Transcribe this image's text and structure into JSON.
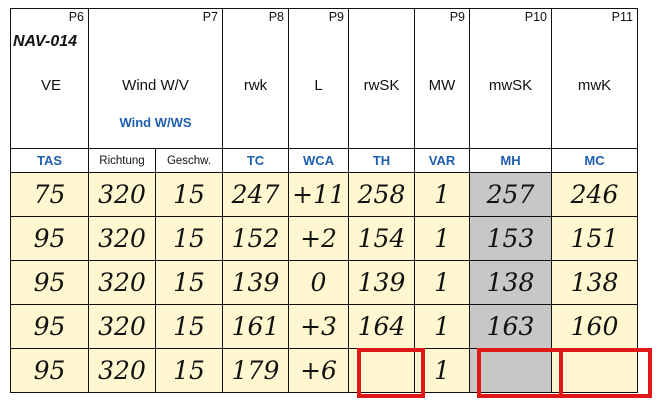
{
  "table": {
    "nav_id": "NAV-014",
    "columns": [
      {
        "p": "P6",
        "name": "VE",
        "sub": "TAS"
      },
      {
        "p": "P7",
        "name": "Wind W/V",
        "name2": "Wind W/WS",
        "sub_a": "Richtung",
        "sub_b": "Geschw."
      },
      {
        "p": "P8",
        "name": "rwk",
        "sub": "TC"
      },
      {
        "p": "P9",
        "name": "L",
        "sub": "WCA"
      },
      {
        "p": "",
        "name": "rwSK",
        "sub": "TH"
      },
      {
        "p": "P9",
        "name": "MW",
        "sub": "VAR"
      },
      {
        "p": "P10",
        "name": "mwSK",
        "sub": "MH"
      },
      {
        "p": "P11",
        "name": "mwK",
        "sub": "MC"
      }
    ],
    "rows": [
      [
        "75",
        "320",
        "15",
        "247",
        "+11",
        "258",
        "1",
        "257",
        "246"
      ],
      [
        "95",
        "320",
        "15",
        "152",
        "+2",
        "154",
        "1",
        "153",
        "151"
      ],
      [
        "95",
        "320",
        "15",
        "139",
        "0",
        "139",
        "1",
        "138",
        "138"
      ],
      [
        "95",
        "320",
        "15",
        "161",
        "+3",
        "164",
        "1",
        "163",
        "160"
      ],
      [
        "95",
        "320",
        "15",
        "179",
        "+6",
        "",
        "1",
        "",
        ""
      ]
    ]
  },
  "colors": {
    "cell_bg": "#fff7cf",
    "gray_col": "#c7c7c7",
    "header_blue": "#1f5fb0",
    "highlight_red": "#e01818"
  }
}
